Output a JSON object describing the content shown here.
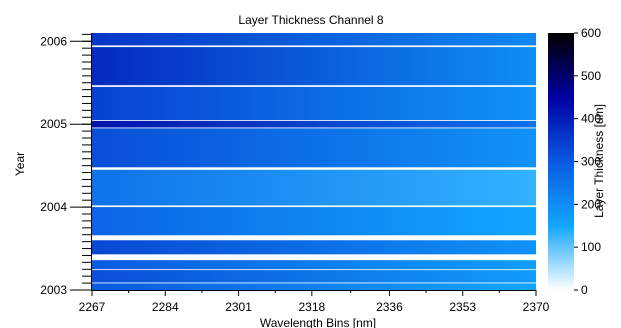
{
  "chart_data": {
    "type": "heatmap",
    "title": "Layer Thickness Channel 8",
    "xlabel": "Wavelength Bins [nm]",
    "ylabel": "Year",
    "colorbar_label": "Layer Thickness [um]",
    "xlim": [
      2267,
      2370
    ],
    "ylim": [
      2003,
      2006.1
    ],
    "x_ticks": [
      2267,
      2284,
      2301,
      2318,
      2336,
      2353,
      2370
    ],
    "y_ticks": [
      2003,
      2004,
      2005,
      2006
    ],
    "color_range": [
      0,
      600
    ],
    "color_ticks": [
      0,
      100,
      200,
      300,
      400,
      500,
      600
    ],
    "colormap": [
      "#ffffff",
      "#12a6ff",
      "#0a5ae0",
      "#0000a0",
      "#000000"
    ],
    "bands": [
      {
        "y_start": 2003.0,
        "y_end": 2003.08,
        "left": 300,
        "right": 150
      },
      {
        "y_start": 2003.09,
        "y_end": 2003.24,
        "left": 320,
        "right": 170
      },
      {
        "y_start": 2003.25,
        "y_end": 2003.36,
        "left": 300,
        "right": 165
      },
      {
        "y_start": 2003.43,
        "y_end": 2003.6,
        "left": 330,
        "right": 190
      },
      {
        "y_start": 2003.66,
        "y_end": 2004.0,
        "left": 280,
        "right": 150
      },
      {
        "y_start": 2004.02,
        "y_end": 2004.45,
        "left": 250,
        "right": 130
      },
      {
        "y_start": 2004.48,
        "y_end": 2004.95,
        "left": 320,
        "right": 190
      },
      {
        "y_start": 2004.96,
        "y_end": 2005.04,
        "left": 420,
        "right": 250
      },
      {
        "y_start": 2005.05,
        "y_end": 2005.45,
        "left": 340,
        "right": 190
      },
      {
        "y_start": 2005.47,
        "y_end": 2005.93,
        "left": 380,
        "right": 200
      },
      {
        "y_start": 2005.95,
        "y_end": 2006.1,
        "left": 360,
        "right": 210
      }
    ]
  }
}
